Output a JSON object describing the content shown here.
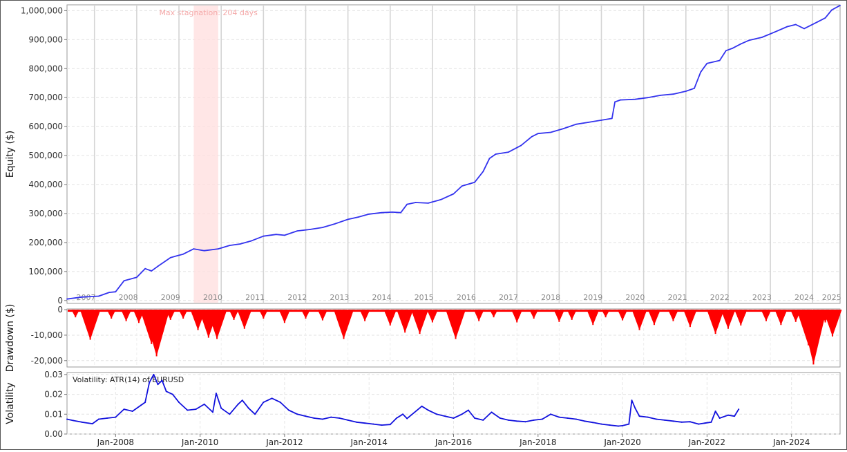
{
  "chart_data": [
    {
      "type": "line",
      "ylabel": "Equity ($)",
      "ylim": [
        -10000,
        1020000
      ],
      "yticks": [
        0,
        100000,
        200000,
        300000,
        400000,
        500000,
        600000,
        700000,
        800000,
        900000,
        1000000
      ],
      "ytick_labels": [
        "0",
        "100,000",
        "200,000",
        "300,000",
        "400,000",
        "500,000",
        "600,000",
        "700,000",
        "800,000",
        "900,000",
        "1,000,000"
      ],
      "xlim": [
        2006.85,
        2025.15
      ],
      "year_boundaries": [
        2007.5,
        2008.5,
        2009.5,
        2010.5,
        2011.5,
        2012.5,
        2013.5,
        2014.5,
        2015.5,
        2016.5,
        2017.5,
        2018.5,
        2019.5,
        2020.5,
        2021.5,
        2022.5,
        2023.5,
        2024.5
      ],
      "year_labels": [
        {
          "x": 2007.3,
          "label": "2007"
        },
        {
          "x": 2008.3,
          "label": "2008"
        },
        {
          "x": 2009.3,
          "label": "2009"
        },
        {
          "x": 2010.3,
          "label": "2010"
        },
        {
          "x": 2011.3,
          "label": "2011"
        },
        {
          "x": 2012.3,
          "label": "2012"
        },
        {
          "x": 2013.3,
          "label": "2013"
        },
        {
          "x": 2014.3,
          "label": "2014"
        },
        {
          "x": 2015.3,
          "label": "2015"
        },
        {
          "x": 2016.3,
          "label": "2016"
        },
        {
          "x": 2017.3,
          "label": "2017"
        },
        {
          "x": 2018.3,
          "label": "2018"
        },
        {
          "x": 2019.3,
          "label": "2019"
        },
        {
          "x": 2020.3,
          "label": "2020"
        },
        {
          "x": 2021.3,
          "label": "2021"
        },
        {
          "x": 2022.3,
          "label": "2022"
        },
        {
          "x": 2023.3,
          "label": "2023"
        },
        {
          "x": 2024.3,
          "label": "2024"
        },
        {
          "x": 2024.95,
          "label": "2025"
        }
      ],
      "stagnation": {
        "x0": 2009.85,
        "x1": 2010.43,
        "label": "Max stagnation: 204 days"
      },
      "series": [
        {
          "color": "#3333ee",
          "points": [
            [
              2006.85,
              5000
            ],
            [
              2007.2,
              12000
            ],
            [
              2007.6,
              15000
            ],
            [
              2007.85,
              28000
            ],
            [
              2008.0,
              30000
            ],
            [
              2008.2,
              68000
            ],
            [
              2008.5,
              80000
            ],
            [
              2008.7,
              110000
            ],
            [
              2008.85,
              102000
            ],
            [
              2009.0,
              118000
            ],
            [
              2009.3,
              148000
            ],
            [
              2009.6,
              160000
            ],
            [
              2009.85,
              178000
            ],
            [
              2010.1,
              172000
            ],
            [
              2010.43,
              178000
            ],
            [
              2010.7,
              190000
            ],
            [
              2010.95,
              195000
            ],
            [
              2011.2,
              205000
            ],
            [
              2011.5,
              222000
            ],
            [
              2011.8,
              228000
            ],
            [
              2012.0,
              225000
            ],
            [
              2012.3,
              240000
            ],
            [
              2012.6,
              245000
            ],
            [
              2012.9,
              252000
            ],
            [
              2013.2,
              265000
            ],
            [
              2013.5,
              280000
            ],
            [
              2013.75,
              288000
            ],
            [
              2014.0,
              298000
            ],
            [
              2014.3,
              303000
            ],
            [
              2014.55,
              305000
            ],
            [
              2014.75,
              303000
            ],
            [
              2014.9,
              332000
            ],
            [
              2015.1,
              338000
            ],
            [
              2015.4,
              336000
            ],
            [
              2015.7,
              348000
            ],
            [
              2016.0,
              368000
            ],
            [
              2016.2,
              395000
            ],
            [
              2016.5,
              408000
            ],
            [
              2016.7,
              445000
            ],
            [
              2016.85,
              490000
            ],
            [
              2017.0,
              505000
            ],
            [
              2017.3,
              512000
            ],
            [
              2017.6,
              535000
            ],
            [
              2017.85,
              565000
            ],
            [
              2018.0,
              576000
            ],
            [
              2018.3,
              580000
            ],
            [
              2018.6,
              593000
            ],
            [
              2018.9,
              608000
            ],
            [
              2019.2,
              615000
            ],
            [
              2019.5,
              622000
            ],
            [
              2019.75,
              628000
            ],
            [
              2019.82,
              685000
            ],
            [
              2019.95,
              692000
            ],
            [
              2020.3,
              694000
            ],
            [
              2020.6,
              700000
            ],
            [
              2020.9,
              708000
            ],
            [
              2021.2,
              712000
            ],
            [
              2021.5,
              722000
            ],
            [
              2021.7,
              732000
            ],
            [
              2021.85,
              788000
            ],
            [
              2022.0,
              818000
            ],
            [
              2022.3,
              828000
            ],
            [
              2022.45,
              862000
            ],
            [
              2022.6,
              870000
            ],
            [
              2022.8,
              885000
            ],
            [
              2023.0,
              898000
            ],
            [
              2023.3,
              908000
            ],
            [
              2023.6,
              926000
            ],
            [
              2023.9,
              945000
            ],
            [
              2024.1,
              952000
            ],
            [
              2024.3,
              938000
            ],
            [
              2024.6,
              960000
            ],
            [
              2024.8,
              975000
            ],
            [
              2024.95,
              1002000
            ],
            [
              2025.15,
              1018000
            ]
          ]
        }
      ]
    },
    {
      "type": "bar",
      "ylabel": "Drawdown ($)",
      "ylim": [
        -22500,
        300
      ],
      "yticks": [
        0,
        -10000,
        -20000
      ],
      "ytick_labels": [
        "0",
        "-10,000",
        "-20,000"
      ],
      "color": "#ff0000",
      "drawdowns": [
        [
          2007.05,
          -3000
        ],
        [
          2007.4,
          -11800
        ],
        [
          2007.9,
          -3500
        ],
        [
          2008.25,
          -4500
        ],
        [
          2008.55,
          -5200
        ],
        [
          2008.85,
          -13500
        ],
        [
          2008.97,
          -18300
        ],
        [
          2009.3,
          -4000
        ],
        [
          2009.6,
          -3500
        ],
        [
          2009.95,
          -8000
        ],
        [
          2010.2,
          -11000
        ],
        [
          2010.4,
          -11500
        ],
        [
          2010.8,
          -4000
        ],
        [
          2011.05,
          -7500
        ],
        [
          2011.5,
          -3500
        ],
        [
          2012.0,
          -5200
        ],
        [
          2012.5,
          -3500
        ],
        [
          2012.9,
          -4200
        ],
        [
          2013.4,
          -11500
        ],
        [
          2013.9,
          -4500
        ],
        [
          2014.5,
          -6200
        ],
        [
          2014.85,
          -9000
        ],
        [
          2015.2,
          -9500
        ],
        [
          2015.5,
          -5000
        ],
        [
          2016.05,
          -11500
        ],
        [
          2016.6,
          -4500
        ],
        [
          2016.95,
          -3000
        ],
        [
          2017.5,
          -5000
        ],
        [
          2017.9,
          -3500
        ],
        [
          2018.5,
          -4800
        ],
        [
          2018.8,
          -4000
        ],
        [
          2019.3,
          -6000
        ],
        [
          2019.6,
          -3000
        ],
        [
          2020.0,
          -4200
        ],
        [
          2020.4,
          -8000
        ],
        [
          2020.75,
          -6000
        ],
        [
          2021.2,
          -4500
        ],
        [
          2021.6,
          -6800
        ],
        [
          2022.2,
          -9500
        ],
        [
          2022.5,
          -7500
        ],
        [
          2022.8,
          -6200
        ],
        [
          2023.4,
          -4500
        ],
        [
          2023.75,
          -6000
        ],
        [
          2024.1,
          -4800
        ],
        [
          2024.4,
          -14000
        ],
        [
          2024.52,
          -21500
        ],
        [
          2024.8,
          -5000
        ],
        [
          2024.97,
          -10500
        ]
      ]
    },
    {
      "type": "line",
      "ylabel": "Volatility",
      "legend": "Volatility: ATR(14) of EURUSD",
      "ylim": [
        0,
        0.031
      ],
      "yticks": [
        0,
        0.01,
        0.02,
        0.03
      ],
      "ytick_labels": [
        "0.00",
        "0.01",
        "0.02",
        "0.03"
      ],
      "xlim": [
        2006.85,
        2025.15
      ],
      "xticks": [
        2008,
        2010,
        2012,
        2014,
        2016,
        2018,
        2020,
        2022,
        2024
      ],
      "xtick_labels": [
        "Jan-2008",
        "Jan-2010",
        "Jan-2012",
        "Jan-2014",
        "Jan-2016",
        "Jan-2018",
        "Jan-2020",
        "Jan-2022",
        "Jan-2024"
      ],
      "series": [
        {
          "color": "#1111dd",
          "points": [
            [
              2006.85,
              0.0075
            ],
            [
              2007.0,
              0.0068
            ],
            [
              2007.2,
              0.006
            ],
            [
              2007.45,
              0.0052
            ],
            [
              2007.6,
              0.0075
            ],
            [
              2007.8,
              0.008
            ],
            [
              2008.0,
              0.0085
            ],
            [
              2008.2,
              0.0125
            ],
            [
              2008.4,
              0.0115
            ],
            [
              2008.6,
              0.0145
            ],
            [
              2008.7,
              0.016
            ],
            [
              2008.8,
              0.026
            ],
            [
              2008.9,
              0.03
            ],
            [
              2009.0,
              0.025
            ],
            [
              2009.1,
              0.027
            ],
            [
              2009.2,
              0.0215
            ],
            [
              2009.35,
              0.02
            ],
            [
              2009.5,
              0.016
            ],
            [
              2009.7,
              0.012
            ],
            [
              2009.9,
              0.0125
            ],
            [
              2010.1,
              0.015
            ],
            [
              2010.3,
              0.011
            ],
            [
              2010.38,
              0.0205
            ],
            [
              2010.5,
              0.013
            ],
            [
              2010.7,
              0.01
            ],
            [
              2010.9,
              0.015
            ],
            [
              2011.0,
              0.017
            ],
            [
              2011.15,
              0.013
            ],
            [
              2011.3,
              0.01
            ],
            [
              2011.5,
              0.016
            ],
            [
              2011.7,
              0.018
            ],
            [
              2011.9,
              0.016
            ],
            [
              2012.1,
              0.012
            ],
            [
              2012.3,
              0.01
            ],
            [
              2012.5,
              0.009
            ],
            [
              2012.7,
              0.008
            ],
            [
              2012.9,
              0.0075
            ],
            [
              2013.1,
              0.0085
            ],
            [
              2013.3,
              0.008
            ],
            [
              2013.5,
              0.007
            ],
            [
              2013.7,
              0.006
            ],
            [
              2013.9,
              0.0055
            ],
            [
              2014.1,
              0.005
            ],
            [
              2014.3,
              0.0045
            ],
            [
              2014.5,
              0.0048
            ],
            [
              2014.65,
              0.008
            ],
            [
              2014.8,
              0.01
            ],
            [
              2014.9,
              0.0078
            ],
            [
              2015.25,
              0.014
            ],
            [
              2015.4,
              0.012
            ],
            [
              2015.6,
              0.01
            ],
            [
              2015.8,
              0.009
            ],
            [
              2016.0,
              0.008
            ],
            [
              2016.2,
              0.01
            ],
            [
              2016.35,
              0.012
            ],
            [
              2016.5,
              0.008
            ],
            [
              2016.7,
              0.007
            ],
            [
              2016.9,
              0.011
            ],
            [
              2017.1,
              0.008
            ],
            [
              2017.3,
              0.007
            ],
            [
              2017.5,
              0.0065
            ],
            [
              2017.7,
              0.0062
            ],
            [
              2017.9,
              0.007
            ],
            [
              2018.1,
              0.0075
            ],
            [
              2018.3,
              0.01
            ],
            [
              2018.5,
              0.0085
            ],
            [
              2018.7,
              0.008
            ],
            [
              2018.9,
              0.0075
            ],
            [
              2019.1,
              0.0065
            ],
            [
              2019.3,
              0.0058
            ],
            [
              2019.5,
              0.005
            ],
            [
              2019.7,
              0.0045
            ],
            [
              2019.9,
              0.004
            ],
            [
              2020.0,
              0.0042
            ],
            [
              2020.15,
              0.005
            ],
            [
              2020.22,
              0.017
            ],
            [
              2020.3,
              0.013
            ],
            [
              2020.4,
              0.009
            ],
            [
              2020.6,
              0.0085
            ],
            [
              2020.8,
              0.0075
            ],
            [
              2021.0,
              0.007
            ],
            [
              2021.2,
              0.0065
            ],
            [
              2021.4,
              0.006
            ],
            [
              2021.6,
              0.0062
            ],
            [
              2021.8,
              0.005
            ],
            [
              2021.95,
              0.0055
            ],
            [
              2022.1,
              0.006
            ],
            [
              2022.2,
              0.0115
            ],
            [
              2022.3,
              0.008
            ],
            [
              2022.5,
              0.0095
            ],
            [
              2022.65,
              0.009
            ],
            [
              2022.75,
              0.0125
            ]
          ]
        }
      ]
    }
  ]
}
